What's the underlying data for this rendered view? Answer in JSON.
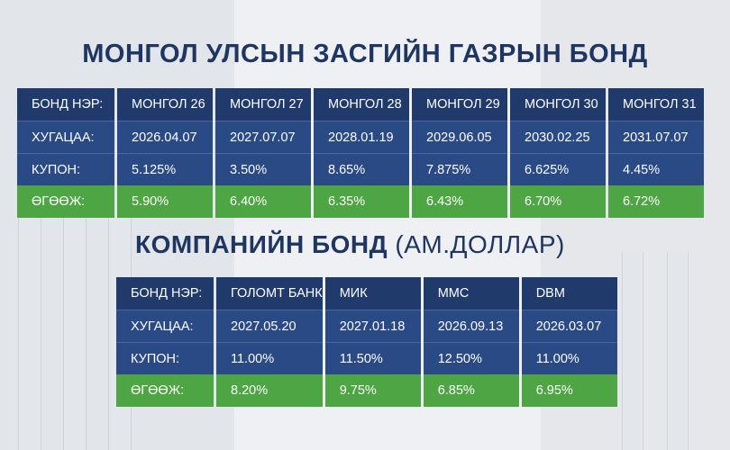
{
  "government": {
    "title": "МОНГОЛ УЛСЫН ЗАСГИЙН ГАЗРЫН БОНД",
    "row_labels": {
      "name": "БОНД НЭР:",
      "maturity": "ХУГАЦАА:",
      "coupon": "КУПОН:",
      "yield": "ӨГӨӨЖ:"
    },
    "bonds": [
      {
        "name": "МОНГОЛ 26",
        "maturity": "2026.04.07",
        "coupon": "5.125%",
        "yield": "5.90%"
      },
      {
        "name": "МОНГОЛ 27",
        "maturity": "2027.07.07",
        "coupon": "3.50%",
        "yield": "6.40%"
      },
      {
        "name": "МОНГОЛ 28",
        "maturity": "2028.01.19",
        "coupon": "8.65%",
        "yield": "6.35%"
      },
      {
        "name": "МОНГОЛ 29",
        "maturity": "2029.06.05",
        "coupon": "7.875%",
        "yield": "6.43%"
      },
      {
        "name": "МОНГОЛ 30",
        "maturity": "2030.02.25",
        "coupon": "6.625%",
        "yield": "6.70%"
      },
      {
        "name": "МОНГОЛ 31",
        "maturity": "2031.07.07",
        "coupon": "4.45%",
        "yield": "6.72%"
      }
    ]
  },
  "corporate": {
    "title": "КОМПАНИЙН БОНД",
    "subtitle": "(АМ.ДОЛЛАР)",
    "row_labels": {
      "name": "БОНД НЭР:",
      "maturity": "ХУГАЦАА:",
      "coupon": "КУПОН:",
      "yield": "ӨГӨӨЖ:"
    },
    "bonds": [
      {
        "name": "ГОЛОМТ БАНК",
        "maturity": "2027.05.20",
        "coupon": "11.00%",
        "yield": "8.20%"
      },
      {
        "name": "МИК",
        "maturity": "2027.01.18",
        "coupon": "11.50%",
        "yield": "9.75%"
      },
      {
        "name": "ММС",
        "maturity": "2026.09.13",
        "coupon": "12.50%",
        "yield": "6.85%"
      },
      {
        "name": "DBM",
        "maturity": "2026.03.07",
        "coupon": "11.00%",
        "yield": "6.95%"
      }
    ]
  },
  "colors": {
    "title": "#1f3562",
    "header_row": "#203a6b",
    "body_row": "#2a4a86",
    "yield_row": "#4ea544"
  }
}
